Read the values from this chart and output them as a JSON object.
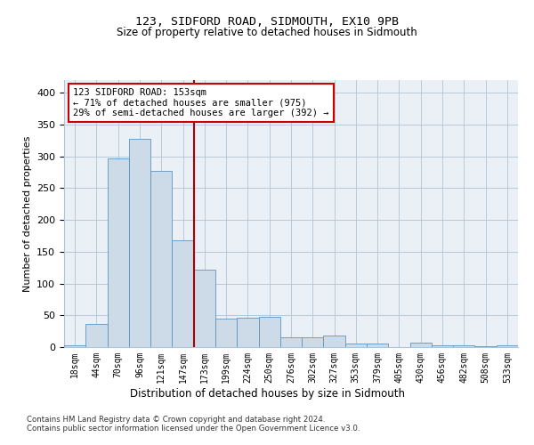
{
  "title1": "123, SIDFORD ROAD, SIDMOUTH, EX10 9PB",
  "title2": "Size of property relative to detached houses in Sidmouth",
  "xlabel": "Distribution of detached houses by size in Sidmouth",
  "ylabel": "Number of detached properties",
  "bar_labels": [
    "18sqm",
    "44sqm",
    "70sqm",
    "96sqm",
    "121sqm",
    "147sqm",
    "173sqm",
    "199sqm",
    "224sqm",
    "250sqm",
    "276sqm",
    "302sqm",
    "327sqm",
    "353sqm",
    "379sqm",
    "405sqm",
    "430sqm",
    "456sqm",
    "482sqm",
    "508sqm",
    "533sqm"
  ],
  "bar_values": [
    3,
    37,
    297,
    328,
    277,
    168,
    122,
    45,
    46,
    48,
    16,
    16,
    18,
    6,
    6,
    0,
    7,
    3,
    3,
    2,
    3
  ],
  "bar_color": "#cddae8",
  "bar_edge_color": "#5b96bf",
  "property_label": "123 SIDFORD ROAD: 153sqm",
  "annotation_line1": "← 71% of detached houses are smaller (975)",
  "annotation_line2": "29% of semi-detached houses are larger (392) →",
  "vline_color": "#aa0000",
  "ylim": [
    0,
    420
  ],
  "yticks": [
    0,
    50,
    100,
    150,
    200,
    250,
    300,
    350,
    400
  ],
  "footnote1": "Contains HM Land Registry data © Crown copyright and database right 2024.",
  "footnote2": "Contains public sector information licensed under the Open Government Licence v3.0.",
  "bg_color": "#eaf0f6",
  "grid_color": "#afc4d6",
  "annotation_box_color": "#cc0000",
  "annotation_bg": "white"
}
